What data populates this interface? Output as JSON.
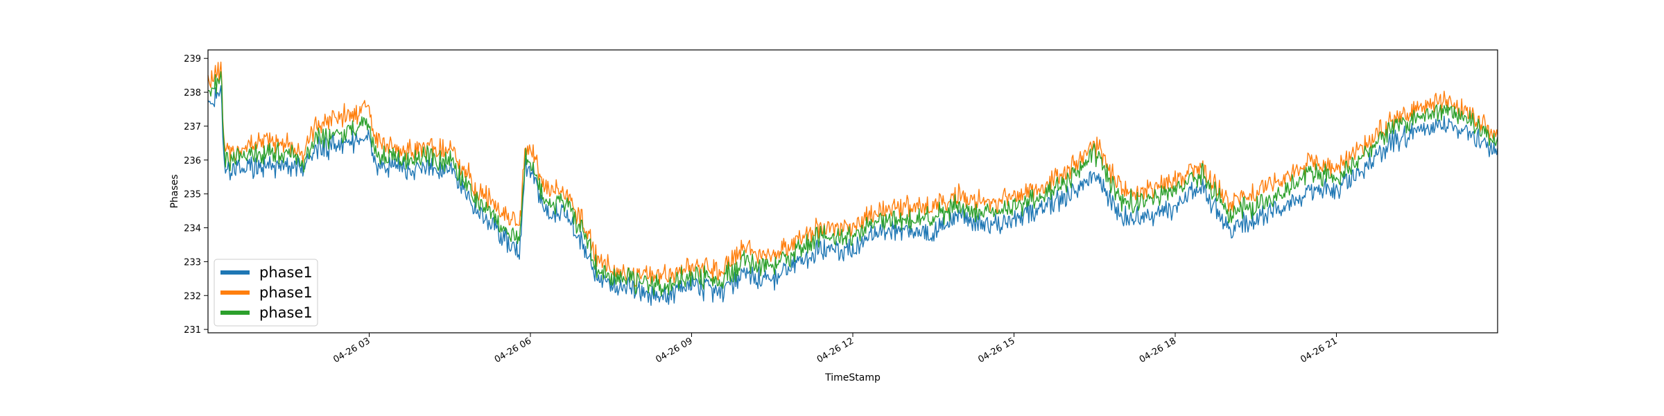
{
  "chart_data": {
    "type": "line",
    "title": "",
    "xlabel": "TimeStamp",
    "ylabel": "Phases",
    "x_unit": "hour of day",
    "xlim": [
      0,
      24
    ],
    "ylim": [
      230.9,
      239.25
    ],
    "grid": false,
    "legend_placement": "lower-left",
    "yticks": [
      231,
      232,
      233,
      234,
      235,
      236,
      237,
      238,
      239
    ],
    "xticks": [
      {
        "value": 3,
        "label": "04-26 03"
      },
      {
        "value": 6,
        "label": "04-26 06"
      },
      {
        "value": 9,
        "label": "04-26 09"
      },
      {
        "value": 12,
        "label": "04-26 12"
      },
      {
        "value": 15,
        "label": "04-26 15"
      },
      {
        "value": 18,
        "label": "04-26 18"
      },
      {
        "value": 21,
        "label": "04-26 21"
      }
    ],
    "x": [
      0,
      0.25,
      0.3,
      0.5,
      1,
      1.5,
      1.8,
      2,
      2.5,
      3,
      3.1,
      3.5,
      4,
      4.5,
      5,
      5.8,
      5.9,
      6,
      6.3,
      6.6,
      7,
      7.3,
      7.6,
      8,
      8.5,
      9,
      9.5,
      10,
      10.5,
      11,
      11.5,
      12,
      12.5,
      13,
      13.5,
      14,
      14.5,
      15,
      15.5,
      16,
      16.5,
      17,
      17.5,
      18,
      18.5,
      19,
      19.5,
      20,
      20.5,
      21,
      21.5,
      22,
      22.5,
      23,
      23.5,
      24
    ],
    "series": [
      {
        "name": "phase1",
        "color": "#1f77b4",
        "values": [
          237.6,
          238.0,
          235.7,
          235.7,
          235.8,
          235.9,
          235.7,
          236.3,
          236.5,
          236.6,
          235.9,
          235.8,
          235.8,
          235.7,
          234.6,
          233.2,
          235.9,
          235.8,
          234.3,
          234.5,
          233.4,
          232.4,
          232.3,
          232.1,
          232.0,
          232.3,
          232.1,
          232.6,
          232.4,
          233.0,
          233.4,
          233.3,
          234.0,
          233.9,
          233.8,
          234.4,
          234.0,
          234.2,
          234.6,
          235.0,
          235.5,
          234.3,
          234.3,
          234.6,
          235.2,
          234.0,
          234.2,
          234.6,
          235.0,
          235.2,
          235.7,
          236.5,
          236.8,
          237.0,
          236.8,
          236.2
        ]
      },
      {
        "name": "phase1",
        "color": "#ff7f0e",
        "values": [
          238.3,
          238.6,
          236.3,
          236.2,
          236.6,
          236.5,
          236.2,
          237.0,
          237.3,
          237.5,
          236.6,
          236.3,
          236.4,
          236.3,
          235.2,
          234.0,
          236.4,
          236.4,
          235.0,
          235.1,
          234.1,
          232.9,
          232.8,
          232.6,
          232.6,
          232.9,
          232.7,
          233.4,
          233.1,
          233.7,
          234.1,
          234.0,
          234.6,
          234.6,
          234.6,
          235.0,
          234.7,
          234.9,
          235.2,
          235.7,
          236.5,
          235.1,
          235.1,
          235.4,
          235.8,
          234.8,
          235.0,
          235.4,
          235.9,
          235.8,
          236.4,
          237.1,
          237.4,
          237.8,
          237.3,
          236.7
        ]
      },
      {
        "name": "phase1",
        "color": "#2ca02c",
        "values": [
          238.0,
          238.3,
          236.0,
          236.0,
          236.2,
          236.2,
          235.9,
          236.6,
          236.8,
          237.0,
          236.2,
          236.0,
          236.1,
          236.0,
          234.9,
          233.6,
          236.1,
          236.0,
          234.7,
          234.8,
          233.8,
          232.6,
          232.6,
          232.4,
          232.3,
          232.6,
          232.4,
          233.0,
          232.8,
          233.4,
          233.8,
          233.7,
          234.3,
          234.2,
          234.3,
          234.7,
          234.4,
          234.6,
          234.9,
          235.4,
          236.2,
          234.8,
          234.8,
          235.1,
          235.6,
          234.5,
          234.6,
          235.0,
          235.6,
          235.5,
          236.1,
          236.9,
          237.2,
          237.5,
          237.1,
          236.5
        ]
      }
    ]
  }
}
